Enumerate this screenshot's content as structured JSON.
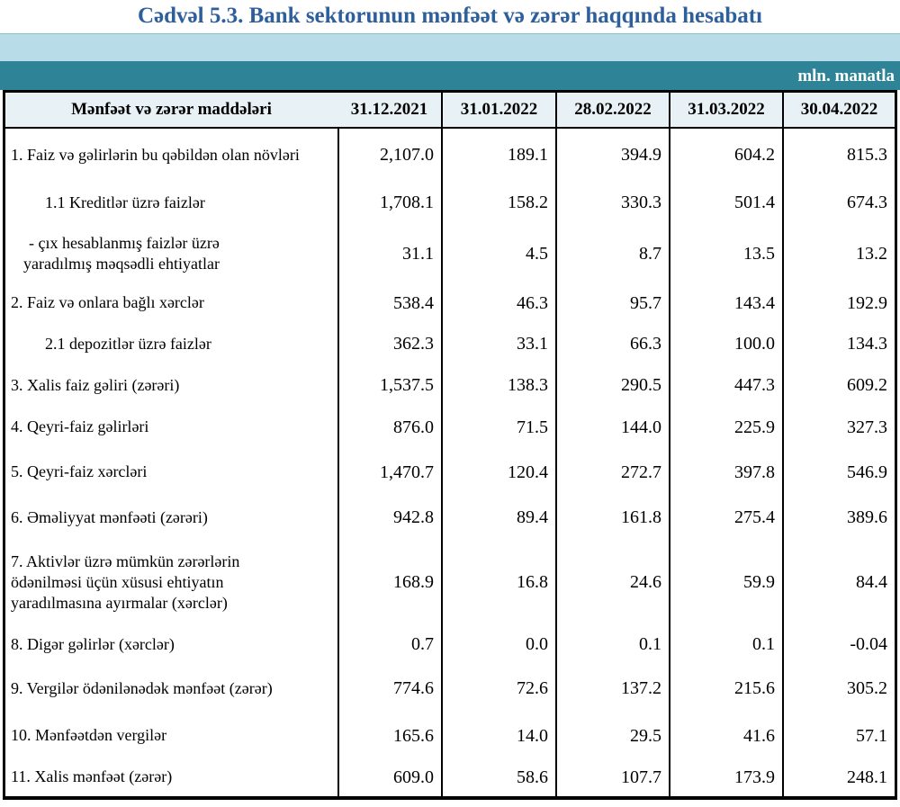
{
  "title": "Cədvəl 5.3. Bank sektorunun mənfəət və zərər haqqında hesabatı",
  "units_label": "mln. manatla",
  "colors": {
    "title_blue": "#2e5f9d",
    "band_light_blue": "#b9dce9",
    "band_teal": "#2e8397",
    "header_row_bg": "#e8f2f6",
    "border_black": "#000000"
  },
  "table": {
    "header": {
      "label": "Mənfəət və zərər maddələri",
      "dates": [
        "31.12.2021",
        "31.01.2022",
        "28.02.2022",
        "31.03.2022",
        "30.04.2022"
      ]
    },
    "rows": [
      {
        "label": "1. Faiz və gəlirlərin bu qəbildən olan növləri",
        "indent": 0,
        "values": [
          "2,107.0",
          "189.1",
          "394.9",
          "604.2",
          "815.3"
        ]
      },
      {
        "label": "1.1 Kreditlər üzrə faizlər",
        "indent": 1,
        "values": [
          "1,708.1",
          "158.2",
          "330.3",
          "501.4",
          "674.3"
        ]
      },
      {
        "label": "-  çıx hesablanmış faizlər üzrə\nyaradılmış məqsədli ehtiyatlar",
        "indent": 2,
        "values": [
          "31.1",
          "4.5",
          "8.7",
          "13.5",
          "13.2"
        ]
      },
      {
        "label": "2. Faiz və onlara bağlı xərclər",
        "indent": 0,
        "values": [
          "538.4",
          "46.3",
          "95.7",
          "143.4",
          "192.9"
        ]
      },
      {
        "label": "2.1 depozitlər üzrə faizlər",
        "indent": 1,
        "values": [
          "362.3",
          "33.1",
          "66.3",
          "100.0",
          "134.3"
        ]
      },
      {
        "label": "3. Xalis faiz gəliri (zərəri)",
        "indent": 0,
        "values": [
          "1,537.5",
          "138.3",
          "290.5",
          "447.3",
          "609.2"
        ]
      },
      {
        "label": "4. Qeyri-faiz gəlirləri",
        "indent": 0,
        "values": [
          "876.0",
          "71.5",
          "144.0",
          "225.9",
          "327.3"
        ]
      },
      {
        "label": "5. Qeyri-faiz xərcləri",
        "indent": 0,
        "values": [
          "1,470.7",
          "120.4",
          "272.7",
          "397.8",
          "546.9"
        ]
      },
      {
        "label": "6. Əməliyyat mənfəəti (zərəri)",
        "indent": 0,
        "values": [
          "942.8",
          "89.4",
          "161.8",
          "275.4",
          "389.6"
        ]
      },
      {
        "label": "7. Aktivlər üzrə mümkün zərərlərin\nödənilməsi üçün xüsusi ehtiyatın\nyaradılmasına ayırmalar (xərclər)",
        "indent": 0,
        "values": [
          "168.9",
          "16.8",
          "24.6",
          "59.9",
          "84.4"
        ]
      },
      {
        "label": "8. Digər gəlirlər (xərclər)",
        "indent": 0,
        "values": [
          "0.7",
          "0.0",
          "0.1",
          "0.1",
          "-0.04"
        ]
      },
      {
        "label": "9. Vergilər ödənilənədək mənfəət (zərər)",
        "indent": 0,
        "values": [
          "774.6",
          "72.6",
          "137.2",
          "215.6",
          "305.2"
        ]
      },
      {
        "label": "10. Mənfəətdən vergilər",
        "indent": 0,
        "values": [
          "165.6",
          "14.0",
          "29.5",
          "41.6",
          "57.1"
        ]
      },
      {
        "label": "11. Xalis mənfəət (zərər)",
        "indent": 0,
        "values": [
          "609.0",
          "58.6",
          "107.7",
          "173.9",
          "248.1"
        ]
      }
    ]
  }
}
